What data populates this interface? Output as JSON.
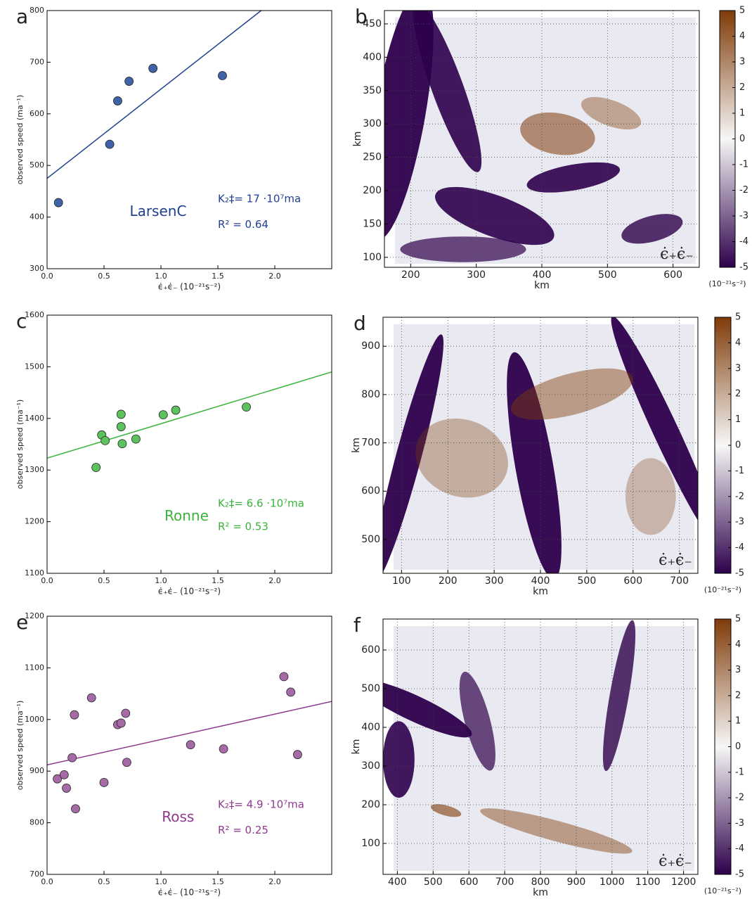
{
  "chart_data": [
    {
      "type": "scatter",
      "panel": "a",
      "name_label": "LarsenC",
      "k_label": "K₂‡= 17 ·10⁷ma",
      "r2_label": "R² = 0.64",
      "ylabel": "observed speed (ma⁻¹)",
      "xlabel": "ϵ̇₊ϵ̇₋ (10⁻²¹s⁻²)",
      "color": "#3f62a8",
      "line_color": "#1f3f94",
      "x": [
        0.1,
        0.55,
        0.62,
        0.72,
        0.93,
        1.54
      ],
      "values": [
        428,
        541,
        625,
        663,
        688,
        674
      ],
      "fit": {
        "x": [
          0,
          1.88
        ],
        "y": [
          475,
          800
        ]
      },
      "xlim": [
        0,
        2.5
      ],
      "ylim": [
        300,
        800
      ],
      "xticks": [
        {
          "value": 0,
          "label": "0.0"
        },
        0.5,
        {
          "value": 1,
          "label": "1.0"
        },
        1.5,
        {
          "value": 2,
          "label": "2.0"
        }
      ],
      "yticks": [
        300,
        400,
        500,
        600,
        700,
        800
      ]
    },
    {
      "type": "heatmap",
      "panel": "b",
      "xlabel": "km",
      "ylabel": "km",
      "corner_label": "ϵ̇₊ϵ̇₋",
      "xlim": [
        160,
        640
      ],
      "ylim": [
        85,
        470
      ],
      "xticks": [
        200,
        300,
        400,
        500,
        600
      ],
      "yticks": [
        100,
        150,
        200,
        250,
        300,
        350,
        400,
        450
      ],
      "grid": true,
      "colormap": [
        "#2d004b",
        "#f7f7f7",
        "#7f3b08"
      ],
      "colorbar": {
        "lim": [
          -5,
          5
        ],
        "ticks": [
          -5,
          -4,
          -3,
          -2,
          -1,
          0,
          1,
          2,
          3,
          4,
          5
        ],
        "label": "(10⁻²¹s⁻²)"
      }
    },
    {
      "type": "scatter",
      "panel": "c",
      "name_label": "Ronne",
      "k_label": "K₂‡= 6.6 ·10⁷ma",
      "r2_label": "R² = 0.53",
      "ylabel": "observed speed (ma⁻¹)",
      "xlabel": "ϵ̇₊ϵ̇₋ (10⁻²¹s⁻²)",
      "color": "#5cc35c",
      "line_color": "#3bb33b",
      "x": [
        0.43,
        0.48,
        0.51,
        0.65,
        0.65,
        0.66,
        0.78,
        1.02,
        1.13,
        1.75
      ],
      "values": [
        1305,
        1368,
        1357,
        1408,
        1384,
        1351,
        1360,
        1407,
        1416,
        1422
      ],
      "fit": {
        "x": [
          0,
          2.5
        ],
        "y": [
          1323,
          1490
        ]
      },
      "xlim": [
        0,
        2.5
      ],
      "ylim": [
        1100,
        1600
      ],
      "xticks": [
        {
          "value": 0,
          "label": "0.0"
        },
        0.5,
        {
          "value": 1,
          "label": "1.0"
        },
        1.5,
        {
          "value": 2,
          "label": "2.0"
        }
      ],
      "yticks": [
        1100,
        1200,
        1300,
        1400,
        1500,
        1600
      ]
    },
    {
      "type": "heatmap",
      "panel": "d",
      "xlabel": "km",
      "ylabel": "km",
      "corner_label": "ϵ̇₊ϵ̇₋",
      "xlim": [
        60,
        740
      ],
      "ylim": [
        430,
        960
      ],
      "xticks": [
        100,
        200,
        300,
        400,
        500,
        600,
        700
      ],
      "yticks": [
        500,
        600,
        700,
        800,
        900
      ],
      "grid": true,
      "colormap": [
        "#2d004b",
        "#f7f7f7",
        "#7f3b08"
      ],
      "colorbar": {
        "lim": [
          -5,
          5
        ],
        "ticks": [
          -5,
          -4,
          -3,
          -2,
          -1,
          0,
          1,
          2,
          3,
          4,
          5
        ],
        "label": "(10⁻²¹s⁻²)"
      }
    },
    {
      "type": "scatter",
      "panel": "e",
      "name_label": "Ross",
      "k_label": "K₂‡= 4.9 ·10⁷ma",
      "r2_label": "R² = 0.25",
      "ylabel": "observed speed (ma⁻¹)",
      "xlabel": "ϵ̇₊ϵ̇₋ (10⁻²¹s⁻²)",
      "color": "#a66aa6",
      "line_color": "#8e3a8e",
      "x": [
        0.09,
        0.15,
        0.17,
        0.22,
        0.24,
        0.25,
        0.39,
        0.5,
        0.62,
        0.65,
        0.69,
        0.7,
        1.26,
        1.55,
        2.08,
        2.14,
        2.2
      ],
      "values": [
        885,
        893,
        867,
        926,
        1009,
        827,
        1042,
        878,
        990,
        993,
        1012,
        917,
        951,
        943,
        1083,
        1053,
        932
      ],
      "fit": {
        "x": [
          0,
          2.5
        ],
        "y": [
          912,
          1035
        ]
      },
      "xlim": [
        0,
        2.5
      ],
      "ylim": [
        700,
        1200
      ],
      "xticks": [
        {
          "value": 0,
          "label": "0.0"
        },
        0.5,
        {
          "value": 1,
          "label": "1.0"
        },
        1.5,
        {
          "value": 2,
          "label": "2.0"
        }
      ],
      "yticks": [
        700,
        800,
        900,
        1000,
        1100,
        1200
      ]
    },
    {
      "type": "heatmap",
      "panel": "f",
      "xlabel": "km",
      "ylabel": "km",
      "corner_label": "ϵ̇₊ϵ̇₋",
      "xlim": [
        360,
        1240
      ],
      "ylim": [
        20,
        680
      ],
      "xticks": [
        400,
        500,
        600,
        700,
        800,
        900,
        1000,
        1100,
        1200
      ],
      "yticks": [
        100,
        200,
        300,
        400,
        500,
        600
      ],
      "grid": true,
      "colormap": [
        "#2d004b",
        "#f7f7f7",
        "#7f3b08"
      ],
      "colorbar": {
        "lim": [
          -5,
          5
        ],
        "ticks": [
          -5,
          -4,
          -3,
          -2,
          -1,
          0,
          1,
          2,
          3,
          4,
          5
        ],
        "label": "(10⁻²¹s⁻²)"
      }
    }
  ]
}
